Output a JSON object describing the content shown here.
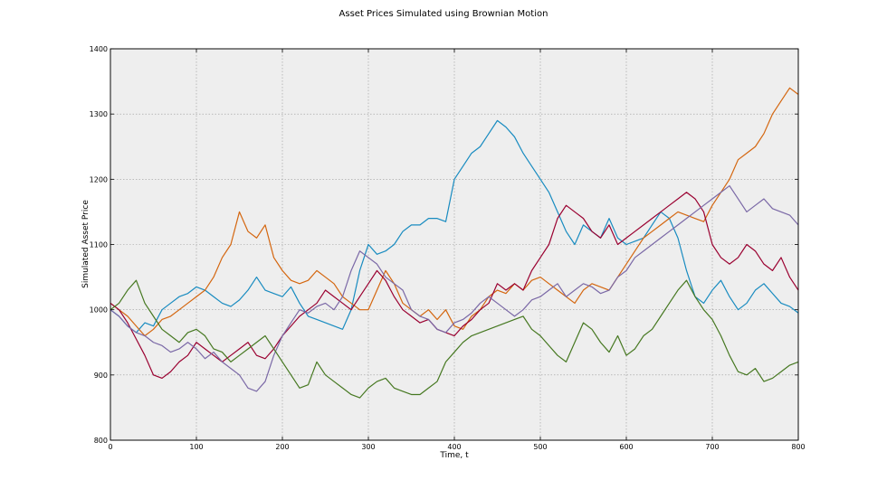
{
  "chart_data": {
    "type": "line",
    "title": "Asset Prices Simulated using Brownian Motion",
    "xlabel": "Time, t",
    "ylabel": "Simulated Asset Price",
    "xlim": [
      0,
      800
    ],
    "ylim": [
      800,
      1400
    ],
    "xticks": [
      0,
      100,
      200,
      300,
      400,
      500,
      600,
      700,
      800
    ],
    "yticks": [
      800,
      900,
      1000,
      1100,
      1200,
      1300,
      1400
    ],
    "grid": true,
    "series": [
      {
        "color": "#188bc0",
        "x": [
          0,
          10,
          20,
          30,
          40,
          50,
          60,
          70,
          80,
          90,
          100,
          110,
          120,
          130,
          140,
          150,
          160,
          170,
          180,
          190,
          200,
          210,
          220,
          230,
          240,
          250,
          260,
          270,
          280,
          290,
          300,
          310,
          320,
          330,
          340,
          350,
          360,
          370,
          380,
          390,
          400,
          410,
          420,
          430,
          440,
          450,
          460,
          470,
          480,
          490,
          500,
          510,
          520,
          530,
          540,
          550,
          560,
          570,
          580,
          590,
          600,
          610,
          620,
          630,
          640,
          650,
          660,
          670,
          680,
          690,
          700,
          710,
          720,
          730,
          740,
          750,
          760,
          770,
          780,
          790,
          800
        ],
        "y": [
          1000,
          990,
          975,
          965,
          980,
          975,
          1000,
          1010,
          1020,
          1025,
          1035,
          1030,
          1020,
          1010,
          1005,
          1015,
          1030,
          1050,
          1030,
          1025,
          1020,
          1035,
          1010,
          990,
          985,
          980,
          975,
          970,
          1000,
          1060,
          1100,
          1085,
          1090,
          1100,
          1120,
          1130,
          1130,
          1140,
          1140,
          1135,
          1200,
          1220,
          1240,
          1250,
          1270,
          1290,
          1280,
          1265,
          1240,
          1220,
          1200,
          1180,
          1150,
          1120,
          1100,
          1130,
          1120,
          1110,
          1140,
          1110,
          1100,
          1105,
          1110,
          1130,
          1150,
          1140,
          1110,
          1060,
          1020,
          1010,
          1030,
          1045,
          1020,
          1000,
          1010,
          1030,
          1040,
          1025,
          1010,
          1005,
          995
        ]
      },
      {
        "color": "#d4660f",
        "x": [
          0,
          10,
          20,
          30,
          40,
          50,
          60,
          70,
          80,
          90,
          100,
          110,
          120,
          130,
          140,
          150,
          160,
          170,
          180,
          190,
          200,
          210,
          220,
          230,
          240,
          250,
          260,
          270,
          280,
          290,
          300,
          310,
          320,
          330,
          340,
          350,
          360,
          370,
          380,
          390,
          400,
          410,
          420,
          430,
          440,
          450,
          460,
          470,
          480,
          490,
          500,
          510,
          520,
          530,
          540,
          550,
          560,
          570,
          580,
          590,
          600,
          610,
          620,
          630,
          640,
          650,
          660,
          670,
          680,
          690,
          700,
          710,
          720,
          730,
          740,
          750,
          760,
          770,
          780,
          790,
          800
        ],
        "y": [
          1010,
          1000,
          990,
          975,
          960,
          970,
          985,
          990,
          1000,
          1010,
          1020,
          1030,
          1050,
          1080,
          1100,
          1150,
          1120,
          1110,
          1130,
          1080,
          1060,
          1045,
          1040,
          1045,
          1060,
          1050,
          1040,
          1020,
          1010,
          1000,
          1000,
          1030,
          1060,
          1040,
          1010,
          1000,
          990,
          1000,
          985,
          1000,
          975,
          970,
          990,
          1000,
          1020,
          1030,
          1025,
          1040,
          1030,
          1045,
          1050,
          1040,
          1030,
          1020,
          1010,
          1030,
          1040,
          1035,
          1030,
          1050,
          1070,
          1090,
          1110,
          1120,
          1130,
          1140,
          1150,
          1145,
          1140,
          1135,
          1160,
          1180,
          1200,
          1230,
          1240,
          1250,
          1270,
          1300,
          1320,
          1340,
          1330
        ]
      },
      {
        "color": "#9a0030",
        "x": [
          0,
          10,
          20,
          30,
          40,
          50,
          60,
          70,
          80,
          90,
          100,
          110,
          120,
          130,
          140,
          150,
          160,
          170,
          180,
          190,
          200,
          210,
          220,
          230,
          240,
          250,
          260,
          270,
          280,
          290,
          300,
          310,
          320,
          330,
          340,
          350,
          360,
          370,
          380,
          390,
          400,
          410,
          420,
          430,
          440,
          450,
          460,
          470,
          480,
          490,
          500,
          510,
          520,
          530,
          540,
          550,
          560,
          570,
          580,
          590,
          600,
          610,
          620,
          630,
          640,
          650,
          660,
          670,
          680,
          690,
          700,
          710,
          720,
          730,
          740,
          750,
          760,
          770,
          780,
          790,
          800
        ],
        "y": [
          1010,
          1000,
          980,
          955,
          930,
          900,
          895,
          905,
          920,
          930,
          950,
          940,
          930,
          920,
          930,
          940,
          950,
          930,
          925,
          940,
          960,
          975,
          990,
          1000,
          1010,
          1030,
          1020,
          1010,
          1000,
          1020,
          1040,
          1060,
          1045,
          1020,
          1000,
          990,
          980,
          985,
          970,
          965,
          960,
          975,
          985,
          1000,
          1010,
          1040,
          1030,
          1040,
          1030,
          1060,
          1080,
          1100,
          1140,
          1160,
          1150,
          1140,
          1120,
          1110,
          1130,
          1100,
          1110,
          1120,
          1130,
          1140,
          1150,
          1160,
          1170,
          1180,
          1170,
          1150,
          1100,
          1080,
          1070,
          1080,
          1100,
          1090,
          1070,
          1060,
          1080,
          1050,
          1030
        ]
      },
      {
        "color": "#7a68a6",
        "x": [
          0,
          10,
          20,
          30,
          40,
          50,
          60,
          70,
          80,
          90,
          100,
          110,
          120,
          130,
          140,
          150,
          160,
          170,
          180,
          190,
          200,
          210,
          220,
          230,
          240,
          250,
          260,
          270,
          280,
          290,
          300,
          310,
          320,
          330,
          340,
          350,
          360,
          370,
          380,
          390,
          400,
          410,
          420,
          430,
          440,
          450,
          460,
          470,
          480,
          490,
          500,
          510,
          520,
          530,
          540,
          550,
          560,
          570,
          580,
          590,
          600,
          610,
          620,
          630,
          640,
          650,
          660,
          670,
          680,
          690,
          700,
          710,
          720,
          730,
          740,
          750,
          760,
          770,
          780,
          790,
          800
        ],
        "y": [
          1000,
          990,
          975,
          965,
          960,
          950,
          945,
          935,
          940,
          950,
          940,
          925,
          935,
          920,
          910,
          900,
          880,
          875,
          890,
          930,
          960,
          980,
          1000,
          995,
          1005,
          1010,
          1000,
          1020,
          1060,
          1090,
          1080,
          1070,
          1050,
          1040,
          1030,
          1000,
          990,
          985,
          970,
          965,
          980,
          985,
          995,
          1010,
          1020,
          1010,
          1000,
          990,
          1000,
          1015,
          1020,
          1030,
          1040,
          1020,
          1030,
          1040,
          1035,
          1025,
          1030,
          1050,
          1060,
          1080,
          1090,
          1100,
          1110,
          1120,
          1130,
          1140,
          1150,
          1160,
          1170,
          1180,
          1190,
          1170,
          1150,
          1160,
          1170,
          1155,
          1150,
          1145,
          1130
        ]
      },
      {
        "color": "#467821",
        "x": [
          0,
          10,
          20,
          30,
          40,
          50,
          60,
          70,
          80,
          90,
          100,
          110,
          120,
          130,
          140,
          150,
          160,
          170,
          180,
          190,
          200,
          210,
          220,
          230,
          240,
          250,
          260,
          270,
          280,
          290,
          300,
          310,
          320,
          330,
          340,
          350,
          360,
          370,
          380,
          390,
          400,
          410,
          420,
          430,
          440,
          450,
          460,
          470,
          480,
          490,
          500,
          510,
          520,
          530,
          540,
          550,
          560,
          570,
          580,
          590,
          600,
          610,
          620,
          630,
          640,
          650,
          660,
          670,
          680,
          690,
          700,
          710,
          720,
          730,
          740,
          750,
          760,
          770,
          780,
          790,
          800
        ],
        "y": [
          1000,
          1010,
          1030,
          1045,
          1010,
          990,
          970,
          960,
          950,
          965,
          970,
          960,
          940,
          935,
          920,
          930,
          940,
          950,
          960,
          940,
          920,
          900,
          880,
          885,
          920,
          900,
          890,
          880,
          870,
          865,
          880,
          890,
          895,
          880,
          875,
          870,
          870,
          880,
          890,
          920,
          935,
          950,
          960,
          965,
          970,
          975,
          980,
          985,
          990,
          970,
          960,
          945,
          930,
          920,
          950,
          980,
          970,
          950,
          935,
          960,
          930,
          940,
          960,
          970,
          990,
          1010,
          1030,
          1045,
          1020,
          1000,
          985,
          960,
          930,
          905,
          900,
          910,
          890,
          895,
          905,
          915,
          920
        ]
      }
    ]
  }
}
